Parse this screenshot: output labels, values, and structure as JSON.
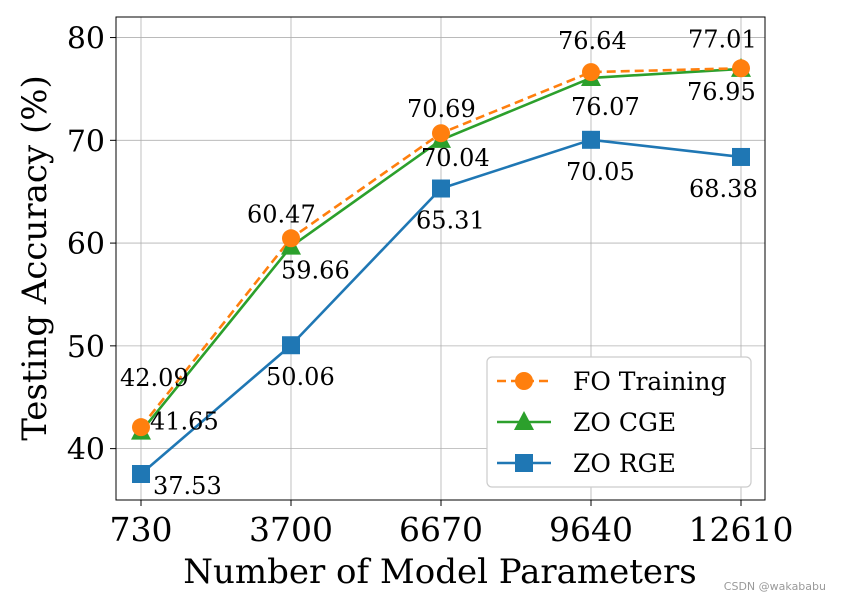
{
  "chart_data": {
    "type": "line",
    "categories": [
      "730",
      "3700",
      "6670",
      "9640",
      "12610"
    ],
    "xlabel": "Number of Model Parameters",
    "ylabel": "Testing Accuracy (%)",
    "ylim": [
      35,
      82
    ],
    "yticks": [
      "40",
      "50",
      "60",
      "70",
      "80"
    ],
    "grid": true,
    "legend_position": "bottom-right",
    "series": [
      {
        "name": "FO Training",
        "color": "#ff7f0e",
        "marker": "circle",
        "linestyle": "dashed",
        "values": [
          42.09,
          60.47,
          70.69,
          76.64,
          77.01
        ],
        "labels": [
          "42.09",
          "60.47",
          "70.69",
          "76.64",
          "77.01"
        ]
      },
      {
        "name": "ZO CGE",
        "color": "#2ca02c",
        "marker": "triangle",
        "linestyle": "solid",
        "values": [
          41.65,
          59.66,
          70.04,
          76.07,
          76.95
        ],
        "labels": [
          "41.65",
          "59.66",
          "70.04",
          "76.07",
          "76.95"
        ]
      },
      {
        "name": "ZO RGE",
        "color": "#1f77b4",
        "marker": "square",
        "linestyle": "solid",
        "values": [
          37.53,
          50.06,
          65.31,
          70.05,
          68.38
        ],
        "labels": [
          "37.53",
          "50.06",
          "65.31",
          "70.05",
          "68.38"
        ]
      }
    ]
  },
  "watermark": "CSDN @wakababu"
}
